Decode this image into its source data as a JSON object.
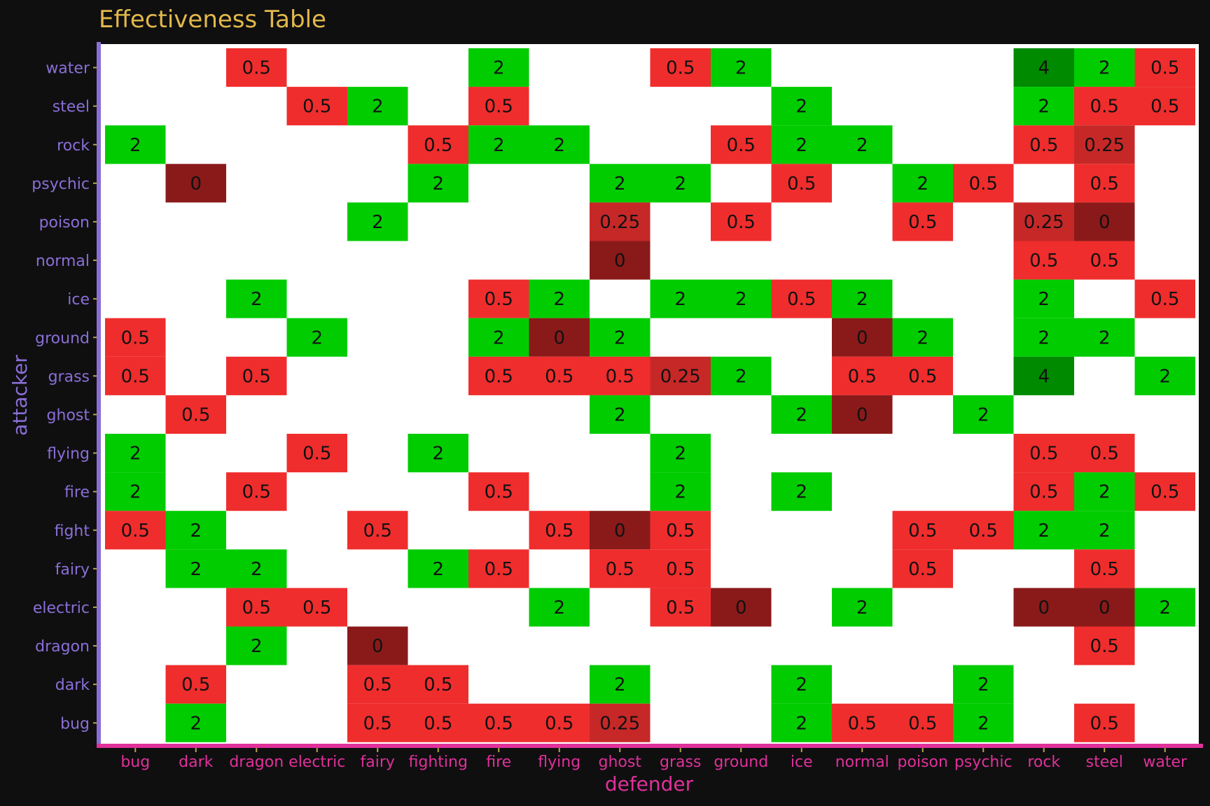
{
  "chart_data": {
    "type": "heatmap",
    "title": "Effectiveness Table",
    "xlabel": "defender",
    "ylabel": "attacker",
    "x_categories": [
      "bug",
      "dark",
      "dragon",
      "electric",
      "fairy",
      "fighting",
      "fire",
      "flying",
      "ghost",
      "grass",
      "ground",
      "ice",
      "normal",
      "poison",
      "psychic",
      "rock",
      "steel",
      "water"
    ],
    "y_categories": [
      "water",
      "steel",
      "rock",
      "psychic",
      "poison",
      "normal",
      "ice",
      "ground",
      "grass",
      "ghost",
      "flying",
      "fire",
      "fight",
      "fairy",
      "electric",
      "dragon",
      "dark",
      "bug"
    ],
    "values": [
      [
        null,
        null,
        "0.5",
        null,
        null,
        null,
        "2",
        null,
        null,
        "0.5",
        "2",
        null,
        null,
        null,
        null,
        "4",
        "2",
        "0.5"
      ],
      [
        null,
        null,
        null,
        "0.5",
        "2",
        null,
        "0.5",
        null,
        null,
        null,
        null,
        "2",
        null,
        null,
        null,
        "2",
        "0.5",
        "0.5"
      ],
      [
        "2",
        null,
        null,
        null,
        null,
        "0.5",
        "2",
        "2",
        null,
        null,
        "0.5",
        "2",
        "2",
        null,
        null,
        "0.5",
        "0.25",
        null
      ],
      [
        null,
        "0",
        null,
        null,
        null,
        "2",
        null,
        null,
        "2",
        "2",
        null,
        "0.5",
        null,
        "2",
        "0.5",
        null,
        "0.5",
        null
      ],
      [
        null,
        null,
        null,
        null,
        "2",
        null,
        null,
        null,
        "0.25",
        null,
        "0.5",
        null,
        null,
        "0.5",
        null,
        "0.25",
        "0",
        null
      ],
      [
        null,
        null,
        null,
        null,
        null,
        null,
        null,
        null,
        "0",
        null,
        null,
        null,
        null,
        null,
        null,
        "0.5",
        "0.5",
        null
      ],
      [
        null,
        null,
        "2",
        null,
        null,
        null,
        "0.5",
        "2",
        null,
        "2",
        "2",
        "0.5",
        "2",
        null,
        null,
        "2",
        null,
        "0.5"
      ],
      [
        "0.5",
        null,
        null,
        "2",
        null,
        null,
        "2",
        "0",
        "2",
        null,
        null,
        null,
        "0",
        "2",
        null,
        "2",
        "2",
        null
      ],
      [
        "0.5",
        null,
        "0.5",
        null,
        null,
        null,
        "0.5",
        "0.5",
        "0.5",
        "0.25",
        "2",
        null,
        "0.5",
        "0.5",
        null,
        "4",
        null,
        "2"
      ],
      [
        null,
        "0.5",
        null,
        null,
        null,
        null,
        null,
        null,
        "2",
        null,
        null,
        "2",
        "0",
        null,
        "2",
        null,
        null,
        null
      ],
      [
        "2",
        null,
        null,
        "0.5",
        null,
        "2",
        null,
        null,
        null,
        "2",
        null,
        null,
        null,
        null,
        null,
        "0.5",
        "0.5",
        null
      ],
      [
        "2",
        null,
        "0.5",
        null,
        null,
        null,
        "0.5",
        null,
        null,
        "2",
        null,
        "2",
        null,
        null,
        null,
        "0.5",
        "2",
        "0.5"
      ],
      [
        "0.5",
        "2",
        null,
        null,
        "0.5",
        null,
        null,
        "0.5",
        "0",
        "0.5",
        null,
        null,
        null,
        "0.5",
        "0.5",
        "2",
        "2",
        null
      ],
      [
        null,
        "2",
        "2",
        null,
        null,
        "2",
        "0.5",
        null,
        "0.5",
        "0.5",
        null,
        null,
        null,
        "0.5",
        null,
        null,
        "0.5",
        null
      ],
      [
        null,
        null,
        "0.5",
        "0.5",
        null,
        null,
        null,
        "2",
        null,
        "0.5",
        "0",
        null,
        "2",
        null,
        null,
        "0",
        "0",
        "2"
      ],
      [
        null,
        null,
        "2",
        null,
        "0",
        null,
        null,
        null,
        null,
        null,
        null,
        null,
        null,
        null,
        null,
        null,
        "0.5",
        null
      ],
      [
        null,
        "0.5",
        null,
        null,
        "0.5",
        "0.5",
        null,
        null,
        "2",
        null,
        null,
        "2",
        null,
        null,
        "2",
        null,
        null,
        null
      ],
      [
        null,
        "2",
        null,
        null,
        "0.5",
        "0.5",
        "0.5",
        "0.5",
        "0.25",
        null,
        null,
        "2",
        "0.5",
        "0.5",
        "2",
        null,
        "0.5",
        null
      ]
    ],
    "colors": {
      "0": "#8a1a1a",
      "0.25": "#c62828",
      "0.5": "#ef2d2d",
      "2": "#00cc00",
      "4": "#008a00",
      "empty": "#ffffff",
      "background": "#0f0f10",
      "title": "#e2b84a",
      "y_axis": "#8a6fd6",
      "x_axis": "#e0309a",
      "tick": "#b8a24a"
    },
    "grid": false,
    "legend": "none"
  }
}
